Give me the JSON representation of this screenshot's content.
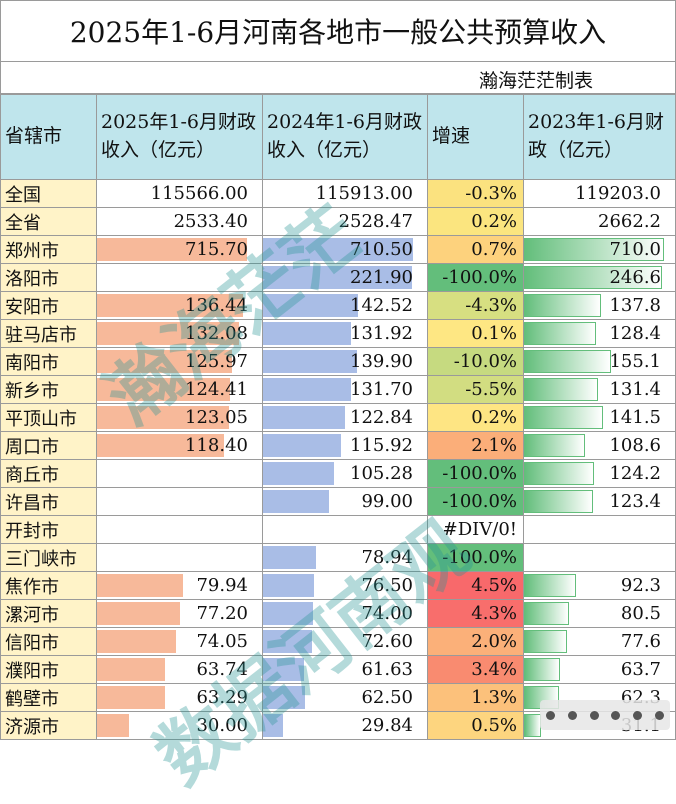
{
  "title": "2025年1-6月河南各地市一般公共预算收入",
  "author": "瀚海茫茫制表",
  "watermark": [
    "瀚海茫茫",
    "数据河南观"
  ],
  "headers": [
    "省辖市",
    "2025年1-6月财政收入（亿元）",
    "2024年1-6月财政收入（亿元）",
    "增速",
    "2023年1-6月财政（亿元）"
  ],
  "colors": {
    "header_bg": "#bfe5ec",
    "name_bg": "#fff3c8",
    "bar_2025": "#f7b99a",
    "bar_2024": "#a9bde6",
    "bar_2023": "#63be7b"
  },
  "rows": [
    {
      "name": "全国",
      "v2025": "115566.00",
      "v2024": "115913.00",
      "growth": "-0.3%",
      "v2023": "119203.0",
      "g_color": "#fbe27f"
    },
    {
      "name": "全省",
      "v2025": "2533.40",
      "v2024": "2528.47",
      "growth": "0.2%",
      "v2023": "2662.2",
      "g_color": "#fbe57f"
    },
    {
      "name": "郑州市",
      "v2025": "715.70",
      "v2024": "710.50",
      "growth": "0.7%",
      "v2023": "710.0",
      "g_color": "#fdd27d"
    },
    {
      "name": "洛阳市",
      "v2025": "",
      "v2024": "221.90",
      "growth": "-100.0%",
      "v2023": "246.6",
      "g_color": "#63be7b"
    },
    {
      "name": "安阳市",
      "v2025": "136.44",
      "v2024": "142.52",
      "growth": "-4.3%",
      "v2023": "137.8",
      "g_color": "#d7df81"
    },
    {
      "name": "驻马店市",
      "v2025": "132.08",
      "v2024": "131.92",
      "growth": "0.1%",
      "v2023": "128.4",
      "g_color": "#fee783"
    },
    {
      "name": "南阳市",
      "v2025": "125.97",
      "v2024": "139.90",
      "growth": "-10.0%",
      "v2023": "155.1",
      "g_color": "#c6da80"
    },
    {
      "name": "新乡市",
      "v2025": "124.41",
      "v2024": "131.70",
      "growth": "-5.5%",
      "v2023": "131.4",
      "g_color": "#d2dd81"
    },
    {
      "name": "平顶山市",
      "v2025": "123.05",
      "v2024": "122.84",
      "growth": "0.2%",
      "v2023": "141.5",
      "g_color": "#fee583"
    },
    {
      "name": "周口市",
      "v2025": "118.40",
      "v2024": "115.92",
      "growth": "2.1%",
      "v2023": "108.6",
      "g_color": "#fbae79"
    },
    {
      "name": "商丘市",
      "v2025": "",
      "v2024": "105.28",
      "growth": "-100.0%",
      "v2023": "124.2",
      "g_color": "#63be7b"
    },
    {
      "name": "许昌市",
      "v2025": "",
      "v2024": "99.00",
      "growth": "-100.0%",
      "v2023": "123.4",
      "g_color": "#63be7b"
    },
    {
      "name": "开封市",
      "v2025": "",
      "v2024": "",
      "growth": "#DIV/0!",
      "v2023": "",
      "g_color": "#ffffff"
    },
    {
      "name": "三门峡市",
      "v2025": "",
      "v2024": "78.94",
      "growth": "-100.0%",
      "v2023": "",
      "g_color": "#63be7b"
    },
    {
      "name": "焦作市",
      "v2025": "79.94",
      "v2024": "76.50",
      "growth": "4.5%",
      "v2023": "92.3",
      "g_color": "#f8696b"
    },
    {
      "name": "漯河市",
      "v2025": "77.20",
      "v2024": "74.00",
      "growth": "4.3%",
      "v2023": "80.5",
      "g_color": "#f86e6c"
    },
    {
      "name": "信阳市",
      "v2025": "74.05",
      "v2024": "72.60",
      "growth": "2.0%",
      "v2023": "77.6",
      "g_color": "#fbb079"
    },
    {
      "name": "濮阳市",
      "v2025": "63.74",
      "v2024": "61.63",
      "growth": "3.4%",
      "v2023": "63.7",
      "g_color": "#f98b70"
    },
    {
      "name": "鹤壁市",
      "v2025": "63.29",
      "v2024": "62.50",
      "growth": "1.3%",
      "v2023": "62.3",
      "g_color": "#fcc17b"
    },
    {
      "name": "济源市",
      "v2025": "30.00",
      "v2024": "29.84",
      "growth": "0.5%",
      "v2023": "31.1",
      "g_color": "#fdd57f"
    }
  ]
}
